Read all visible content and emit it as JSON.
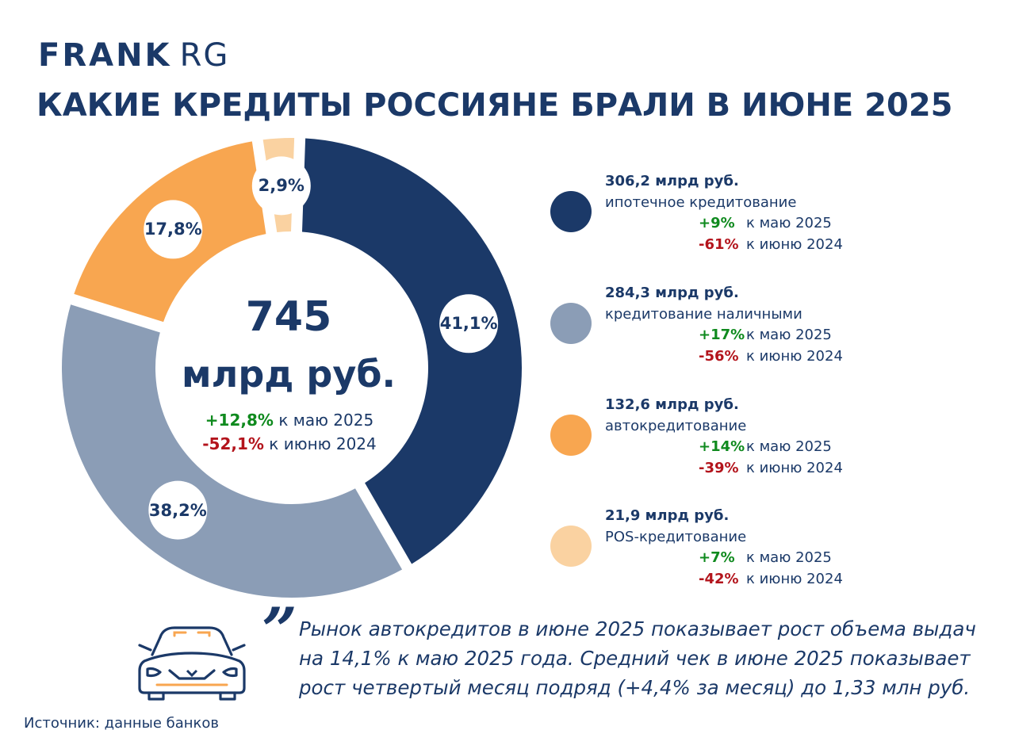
{
  "brand": {
    "bold": "FRANK",
    "regular": "RG"
  },
  "title": "КАКИЕ КРЕДИТЫ РОССИЯНЕ БРАЛИ В ИЮНЕ 2025",
  "center": {
    "value": "745",
    "unit": "млрд руб.",
    "change_month": {
      "value": "+12,8%",
      "text": "к маю 2025"
    },
    "change_year": {
      "value": "-52,1%",
      "text": "к июню 2024"
    }
  },
  "colors": {
    "mortgage": "#1b3968",
    "cash": "#8b9db6",
    "auto": "#f8a650",
    "pos": "#fad2a1",
    "up": "#0f8a1e",
    "down": "#b3141c"
  },
  "chart_data": {
    "type": "pie",
    "title": "КАКИЕ КРЕДИТЫ РОССИЯНЕ БРАЛИ В ИЮНЕ 2025",
    "total": 745,
    "categories": [
      "ипотечное кредитование",
      "кредитование наличными",
      "автокредитование",
      "POS-кредитование"
    ],
    "values": [
      306.2,
      284.3,
      132.6,
      21.9
    ],
    "percent_labels": [
      "41,1%",
      "38,2%",
      "17,8%",
      "2,9%"
    ],
    "colors": [
      "#1b3968",
      "#8b9db6",
      "#f8a650",
      "#fad2a1"
    ],
    "donut": true,
    "legend_position": "right"
  },
  "legend": [
    {
      "amount": "306,2 млрд руб.",
      "category": "ипотечное кредитование",
      "change_month": "+9%",
      "month_text": "к маю 2025",
      "change_year": "-61%",
      "year_text": "к июню 2024"
    },
    {
      "amount": "284,3 млрд руб.",
      "category": "кредитование наличными",
      "change_month": "+17%",
      "month_text": "к маю 2025",
      "change_year": "-56%",
      "year_text": "к июню 2024"
    },
    {
      "amount": "132,6 млрд руб.",
      "category": "автокредитование",
      "change_month": "+14%",
      "month_text": "к маю 2025",
      "change_year": "-39%",
      "year_text": "к июню 2024"
    },
    {
      "amount": "21,9 млрд руб.",
      "category": "POS-кредитование",
      "change_month": "+7%",
      "month_text": "к маю 2025",
      "change_year": "-42%",
      "year_text": "к июню 2024"
    }
  ],
  "quote_mark": "”",
  "quote": "Рынок автокредитов в июне 2025 показывает рост объема выдач на 14,1% к маю 2025 года. Средний чек в июне 2025 показывает рост четвертый месяц подряд (+4,4% за месяц) до 1,33 млн руб.",
  "source": "Источник: данные банков",
  "icons": {
    "car": "car-icon"
  }
}
